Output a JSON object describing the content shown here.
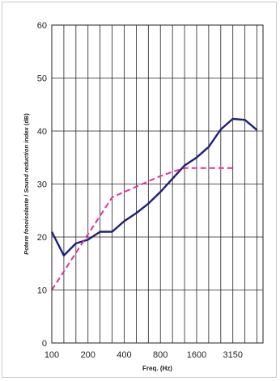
{
  "chart_data": {
    "type": "line",
    "title": "",
    "xlabel": "Freq. (Hz)",
    "ylabel_it": "Potere fonoisolante",
    "ylabel_sep": " / ",
    "ylabel_en": "Sound reduction index",
    "ylabel_unit": " (dB)",
    "x_tick_labels": [
      "100",
      "200",
      "400",
      "800",
      "1600",
      "3150"
    ],
    "y_ticks": [
      0,
      10,
      20,
      30,
      40,
      50,
      60
    ],
    "ylim": [
      0,
      60
    ],
    "grid": true,
    "bands": [
      "100",
      "125",
      "160",
      "200",
      "250",
      "315",
      "400",
      "500",
      "630",
      "800",
      "1000",
      "1250",
      "1600",
      "2000",
      "2500",
      "3150",
      "4000",
      "5000"
    ],
    "series": [
      {
        "style": "solid",
        "color": "#1f1f7a",
        "values": [
          21,
          16.5,
          18.8,
          19.5,
          21,
          21,
          23,
          24.5,
          26.3,
          28.5,
          31,
          33.5,
          35,
          37,
          40.3,
          42.3,
          42.1,
          40.2
        ]
      },
      {
        "style": "dashed",
        "color": "#e0339a",
        "values": [
          10,
          13.5,
          17,
          20.5,
          24,
          27.5,
          28.5,
          29.5,
          30.5,
          31.5,
          32.3,
          33,
          33,
          33,
          33,
          33
        ]
      }
    ]
  }
}
